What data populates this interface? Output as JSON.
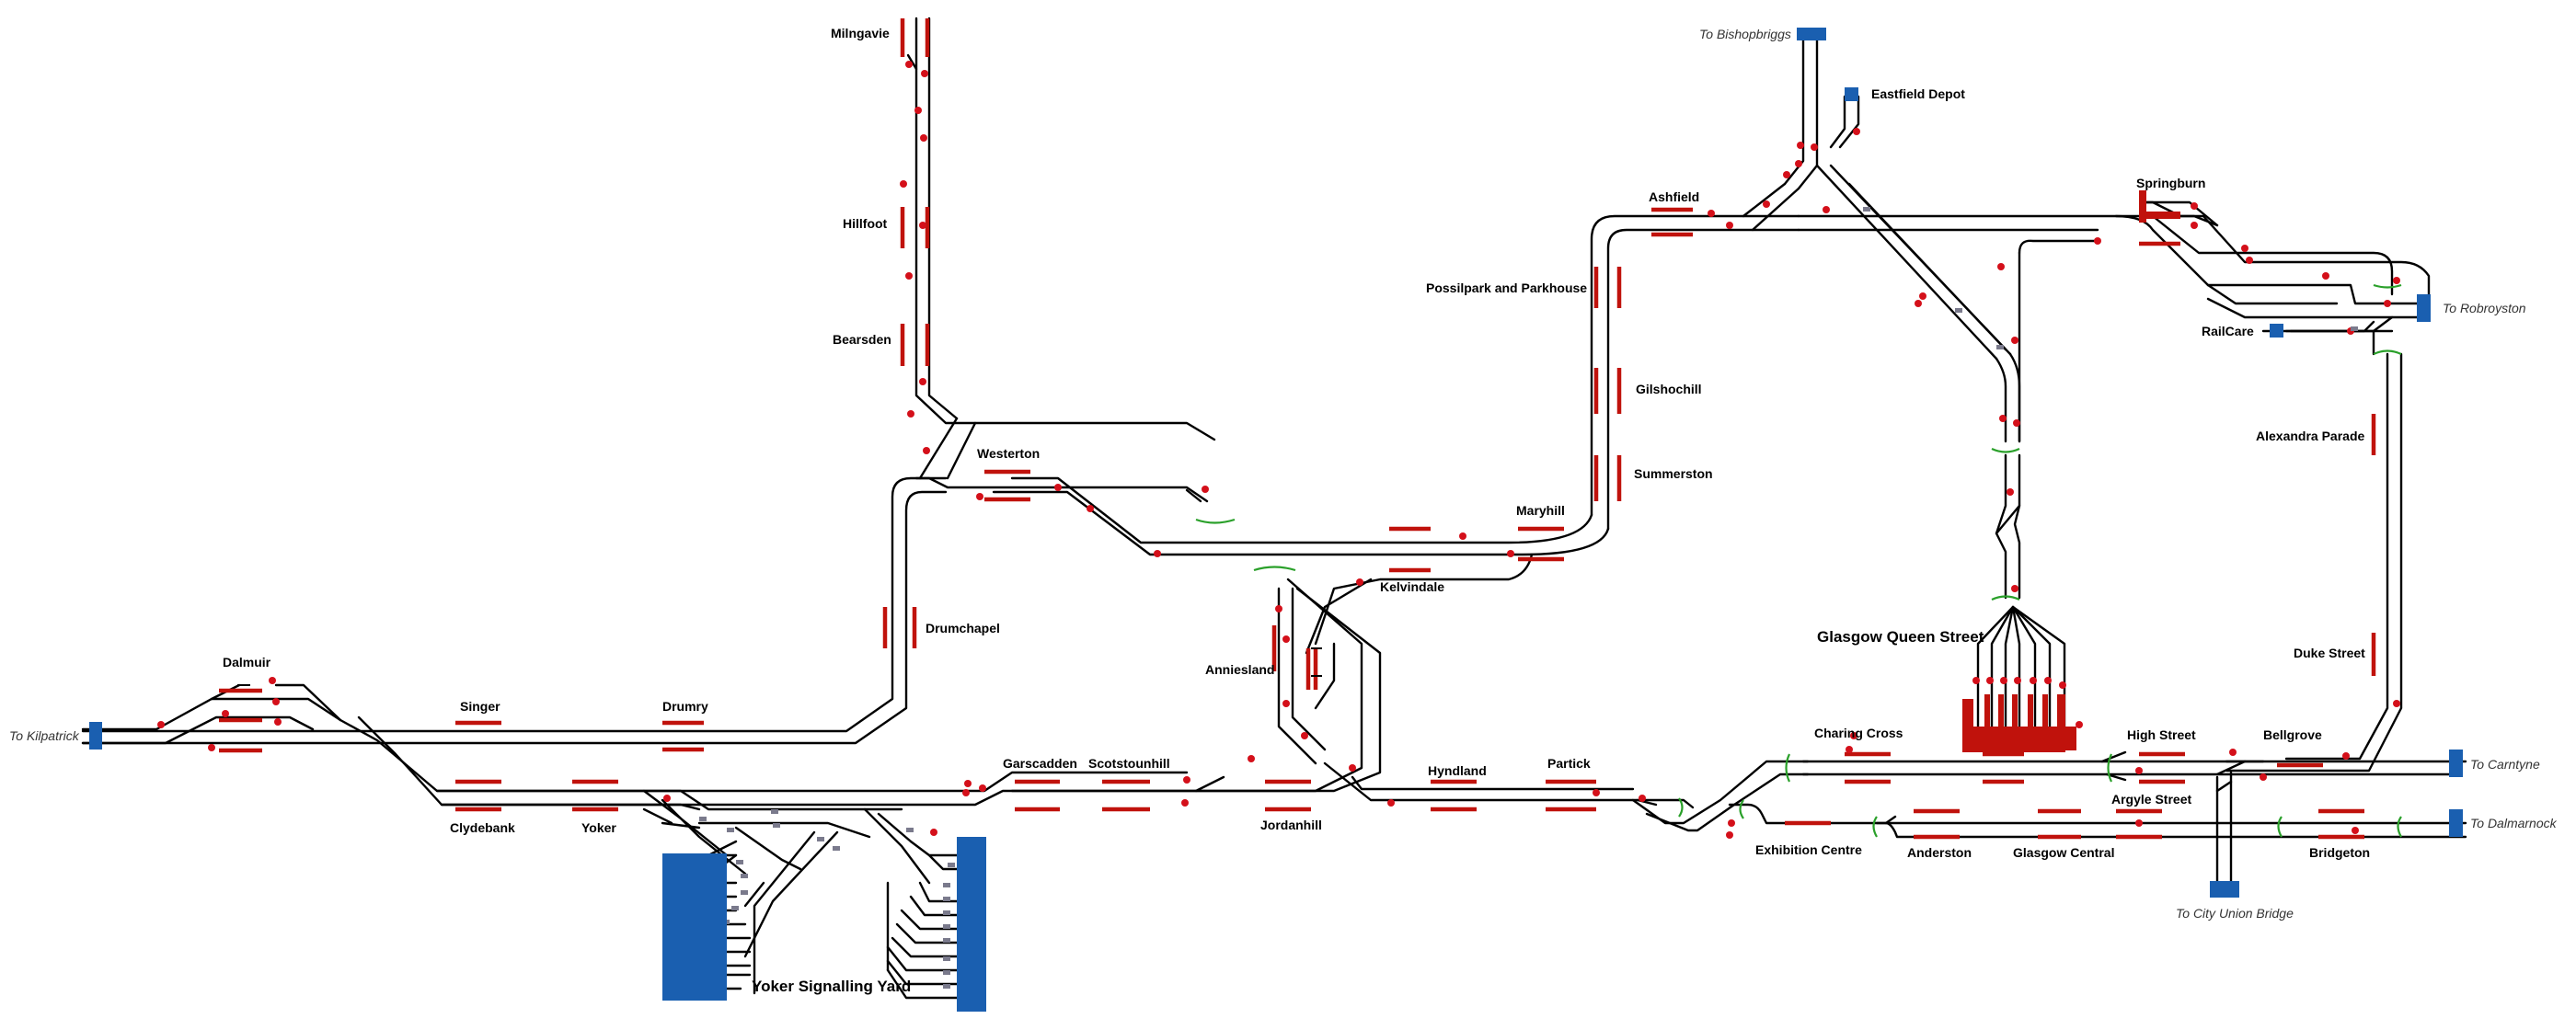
{
  "stations": {
    "milngavie": "Milngavie",
    "hillfoot": "Hillfoot",
    "bearsden": "Bearsden",
    "westerton": "Westerton",
    "drumchapel": "Drumchapel",
    "dalmuir": "Dalmuir",
    "singer": "Singer",
    "drumry": "Drumry",
    "clydebank": "Clydebank",
    "yoker": "Yoker",
    "garscadden": "Garscadden",
    "scotstounhill": "Scotstounhill",
    "jordanhill": "Jordanhill",
    "anniesland": "Anniesland",
    "kelvindale": "Kelvindale",
    "maryhill": "Maryhill",
    "hyndland": "Hyndland",
    "partick": "Partick",
    "possilpark": "Possilpark and Parkhouse",
    "gilshochill": "Gilshochill",
    "summerston": "Summerston",
    "ashfield": "Ashfield",
    "eastfield": "Eastfield Depot",
    "springburn": "Springburn",
    "railcare": "RailCare",
    "alexandra": "Alexandra Parade",
    "duke": "Duke Street",
    "queen_street": "Glasgow Queen Street",
    "charing": "Charing Cross",
    "high_street": "High Street",
    "bellgrove": "Bellgrove",
    "argyle": "Argyle Street",
    "exhibition": "Exhibition Centre",
    "anderston": "Anderston",
    "central": "Glasgow Central",
    "bridgeton": "Bridgeton",
    "yard": "Yoker Signalling Yard"
  },
  "destinations": {
    "kilpatrick": "To Kilpatrick",
    "bishopbriggs": "To Bishopbriggs",
    "robroyston": "To Robroyston",
    "carntyne": "To Carntyne",
    "dalmarnock": "To Dalmarnock",
    "city_union": "To City Union Bridge"
  },
  "colors": {
    "track": "#000000",
    "platform": "#c0120c",
    "signal": "#d4101a",
    "boundary": "#1a5fb0",
    "shunt_signal": "#2aa02a"
  },
  "icons": {
    "signal": "signal-icon",
    "boundary": "boundary-block-icon",
    "siding": "siding-block-icon",
    "buffer": "buffer-stop-icon"
  }
}
